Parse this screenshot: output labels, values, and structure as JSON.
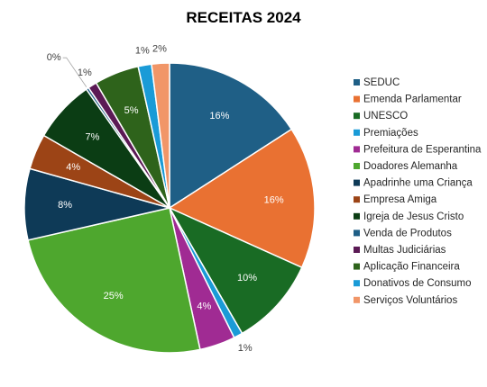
{
  "chart_data": {
    "type": "pie",
    "title": "RECEITAS 2024",
    "legend_position": "right",
    "slices": [
      {
        "name": "SEDUC",
        "value": 16,
        "label": "16%",
        "color": "#1f5f86"
      },
      {
        "name": "Emenda Parlamentar",
        "value": 16,
        "label": "16%",
        "color": "#e97132"
      },
      {
        "name": "UNESCO",
        "value": 10,
        "label": "10%",
        "color": "#196b24"
      },
      {
        "name": "Premiações",
        "value": 1,
        "label": "1%",
        "color": "#1a9bd7"
      },
      {
        "name": "Prefeitura de Esperantina",
        "value": 4,
        "label": "4%",
        "color": "#a02b93"
      },
      {
        "name": "Doadores Alemanha",
        "value": 25,
        "label": "25%",
        "color": "#4ea72e"
      },
      {
        "name": "Apadrinhe uma Criança",
        "value": 8,
        "label": "8%",
        "color": "#0e3a57"
      },
      {
        "name": "Empresa Amiga",
        "value": 4,
        "label": "4%",
        "color": "#9c4416"
      },
      {
        "name": "Igreja de Jesus Cristo",
        "value": 7,
        "label": "7%",
        "color": "#0b3d14"
      },
      {
        "name": "Venda de Produtos",
        "value": 0.3,
        "label": "0%",
        "color": "#1f5f86"
      },
      {
        "name": "Multas Judiciárias",
        "value": 1,
        "label": "1%",
        "color": "#5b1a55"
      },
      {
        "name": "Aplicação Financeira",
        "value": 5,
        "label": "5%",
        "color": "#2e631b"
      },
      {
        "name": "Donativos de Consumo",
        "value": 1.5,
        "label": "1%",
        "color": "#1a9bd7"
      },
      {
        "name": "Serviços Voluntários",
        "value": 2,
        "label": "2%",
        "color": "#f19668"
      }
    ]
  }
}
